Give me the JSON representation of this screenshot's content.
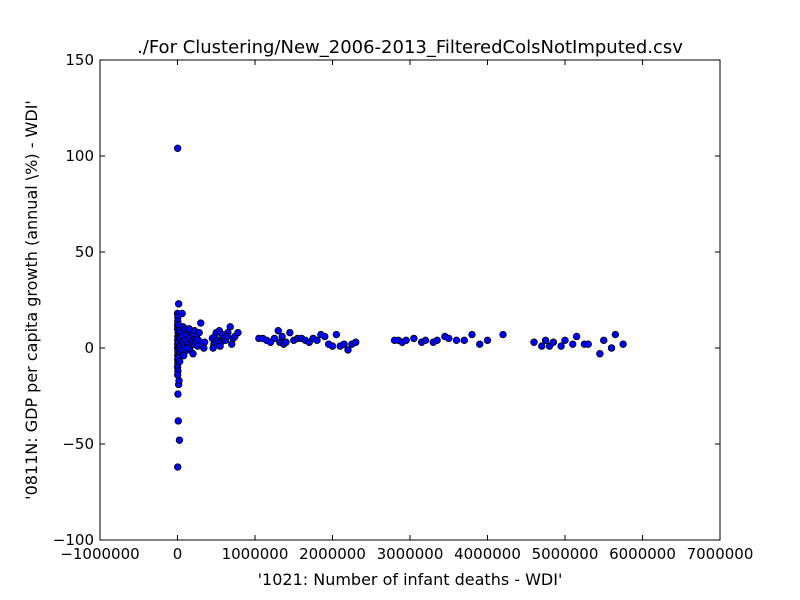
{
  "chart_data": {
    "type": "scatter",
    "title": "./For Clustering/New_2006-2013_FilteredColsNotImputed.csv",
    "xlabel": "'1021: Number of infant deaths - WDI'",
    "ylabel": "'0811N: GDP per capita growth  (annual \\%) - WDI'",
    "xlim": [
      -1000000,
      7000000
    ],
    "ylim": [
      -100,
      150
    ],
    "xticks": [
      -1000000,
      0,
      1000000,
      2000000,
      3000000,
      4000000,
      5000000,
      6000000,
      7000000
    ],
    "xtick_labels": [
      "−1000000",
      "0",
      "1000000",
      "2000000",
      "3000000",
      "4000000",
      "5000000",
      "6000000",
      "7000000"
    ],
    "yticks": [
      -100,
      -50,
      0,
      50,
      100,
      150
    ],
    "ytick_labels": [
      "−100",
      "−50",
      "0",
      "50",
      "100",
      "150"
    ],
    "grid": false,
    "marker_color": "#0000ff",
    "marker_edge_color": "#000000",
    "series": [
      {
        "points": [
          [
            2000,
            104
          ],
          [
            3000,
            -62
          ],
          [
            15000,
            23
          ],
          [
            10000,
            -38
          ],
          [
            25000,
            -48
          ],
          [
            5000,
            -24
          ],
          [
            15000,
            -19
          ],
          [
            20000,
            -17
          ],
          [
            0,
            18
          ],
          [
            5000,
            16
          ],
          [
            3000,
            14
          ],
          [
            2000,
            12
          ],
          [
            1000,
            10
          ],
          [
            8000,
            8
          ],
          [
            4000,
            6
          ],
          [
            3000,
            4
          ],
          [
            2000,
            2
          ],
          [
            1000,
            0
          ],
          [
            6000,
            -2
          ],
          [
            3000,
            -4
          ],
          [
            2000,
            -6
          ],
          [
            4000,
            -8
          ],
          [
            1000,
            -10
          ],
          [
            5000,
            -12
          ],
          [
            2000,
            -14
          ],
          [
            15000,
            12
          ],
          [
            20000,
            9
          ],
          [
            25000,
            6
          ],
          [
            18000,
            3
          ],
          [
            22000,
            0
          ],
          [
            30000,
            -3
          ],
          [
            12000,
            -5
          ],
          [
            28000,
            -7
          ],
          [
            35000,
            1
          ],
          [
            40000,
            5
          ],
          [
            45000,
            8
          ],
          [
            50000,
            -1
          ],
          [
            60000,
            3
          ],
          [
            70000,
            6
          ],
          [
            80000,
            2
          ],
          [
            90000,
            -2
          ],
          [
            100000,
            4
          ],
          [
            110000,
            9
          ],
          [
            120000,
            7
          ],
          [
            130000,
            1
          ],
          [
            140000,
            3
          ],
          [
            150000,
            5
          ],
          [
            160000,
            -1
          ],
          [
            170000,
            2
          ],
          [
            180000,
            8
          ],
          [
            190000,
            4
          ],
          [
            200000,
            6
          ],
          [
            210000,
            2
          ],
          [
            220000,
            9
          ],
          [
            230000,
            5
          ],
          [
            240000,
            3
          ],
          [
            250000,
            7
          ],
          [
            260000,
            1
          ],
          [
            270000,
            4
          ],
          [
            280000,
            8
          ],
          [
            60000,
            18
          ],
          [
            70000,
            11
          ],
          [
            80000,
            -4
          ],
          [
            100000,
            10
          ],
          [
            120000,
            0
          ],
          [
            150000,
            10
          ],
          [
            200000,
            -3
          ],
          [
            300000,
            13
          ],
          [
            320000,
            2
          ],
          [
            340000,
            0
          ],
          [
            350000,
            3
          ],
          [
            450000,
            5
          ],
          [
            470000,
            2
          ],
          [
            480000,
            6
          ],
          [
            500000,
            8
          ],
          [
            520000,
            4
          ],
          [
            540000,
            9
          ],
          [
            560000,
            3
          ],
          [
            580000,
            7
          ],
          [
            600000,
            5
          ],
          [
            620000,
            4
          ],
          [
            650000,
            8
          ],
          [
            680000,
            11
          ],
          [
            700000,
            2
          ],
          [
            720000,
            5
          ],
          [
            740000,
            6
          ],
          [
            780000,
            8
          ],
          [
            460000,
            0
          ],
          [
            550000,
            1
          ],
          [
            640000,
            6
          ],
          [
            1050000,
            5
          ],
          [
            1100000,
            5
          ],
          [
            1150000,
            4
          ],
          [
            1200000,
            3
          ],
          [
            1250000,
            5
          ],
          [
            1300000,
            9
          ],
          [
            1320000,
            3
          ],
          [
            1350000,
            6
          ],
          [
            1370000,
            2
          ],
          [
            1400000,
            3
          ],
          [
            1450000,
            8
          ],
          [
            1500000,
            4
          ],
          [
            1550000,
            5
          ],
          [
            1600000,
            5
          ],
          [
            1650000,
            4
          ],
          [
            1700000,
            3
          ],
          [
            1750000,
            5
          ],
          [
            1800000,
            4
          ],
          [
            1850000,
            7
          ],
          [
            1900000,
            6
          ],
          [
            1950000,
            2
          ],
          [
            2000000,
            1
          ],
          [
            2050000,
            7
          ],
          [
            2100000,
            1
          ],
          [
            2150000,
            2
          ],
          [
            2200000,
            -1
          ],
          [
            2250000,
            2
          ],
          [
            2300000,
            3
          ],
          [
            2800000,
            4
          ],
          [
            2850000,
            4
          ],
          [
            2900000,
            3
          ],
          [
            2950000,
            4
          ],
          [
            3050000,
            5
          ],
          [
            3150000,
            3
          ],
          [
            3200000,
            4
          ],
          [
            3300000,
            3
          ],
          [
            3350000,
            4
          ],
          [
            3450000,
            6
          ],
          [
            3500000,
            5
          ],
          [
            3600000,
            4
          ],
          [
            3700000,
            4
          ],
          [
            3800000,
            7
          ],
          [
            3900000,
            2
          ],
          [
            4000000,
            4
          ],
          [
            4200000,
            7
          ],
          [
            4600000,
            3
          ],
          [
            4700000,
            1
          ],
          [
            4750000,
            4
          ],
          [
            4800000,
            1
          ],
          [
            4850000,
            3
          ],
          [
            4950000,
            1
          ],
          [
            5000000,
            4
          ],
          [
            5100000,
            2
          ],
          [
            5150000,
            6
          ],
          [
            5250000,
            2
          ],
          [
            5300000,
            2
          ],
          [
            5450000,
            -3
          ],
          [
            5500000,
            4
          ],
          [
            5600000,
            0
          ],
          [
            5650000,
            7
          ],
          [
            5750000,
            2
          ]
        ]
      }
    ]
  }
}
